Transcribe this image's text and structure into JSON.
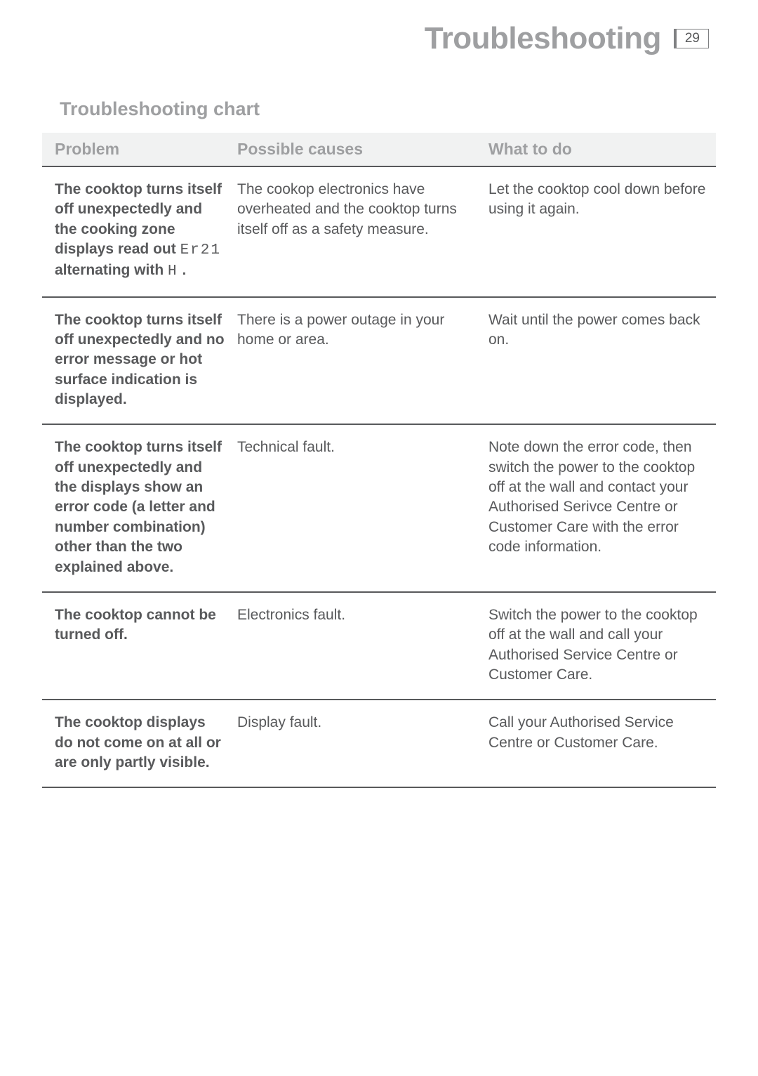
{
  "header": {
    "title": "Troubleshooting",
    "page_number": "29"
  },
  "section_title": "Troubleshooting chart",
  "table": {
    "columns": [
      "Problem",
      "Possible causes",
      "What to do"
    ],
    "rows": [
      {
        "problem_pre": "The cooktop turns itself off unexpectedly and the cooking zone displays read out ",
        "problem_code1": "Er21",
        "problem_mid": " alternating with ",
        "problem_code2": "H",
        "problem_post": " .",
        "cause": "The cookop electronics have overheated and the cooktop turns itself off as a safety measure.",
        "action": "Let the cooktop cool down before using it again."
      },
      {
        "problem": "The cooktop turns itself off unexpectedly and no error message or hot surface indication is displayed.",
        "cause": "There is a power outage in your home or area.",
        "action": "Wait until the power comes back on."
      },
      {
        "problem": "The cooktop turns itself off unexpectedly and the displays show an error code (a letter and number combination) other than the two explained above.",
        "cause": "Technical fault.",
        "action": "Note down the error code, then switch the power to the cooktop off at the wall and contact your Authorised Serivce Centre or Customer Care with the error code information."
      },
      {
        "problem": "The cooktop cannot be turned off.",
        "cause": "Electronics fault.",
        "action": "Switch the power to the cooktop off at the wall and call your Authorised Service Centre or Customer Care."
      },
      {
        "problem": "The cooktop displays do not come on at all or are only partly visible.",
        "cause": "Display fault.",
        "action": "Call your Authorised Service Centre or Customer Care."
      }
    ]
  }
}
